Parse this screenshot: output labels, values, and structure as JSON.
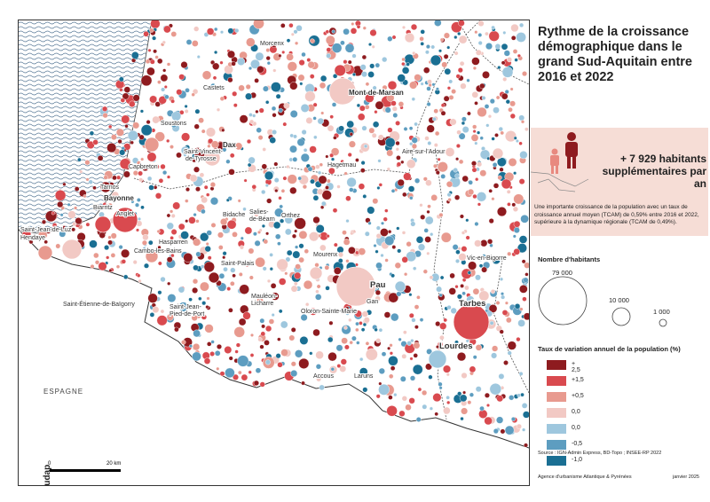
{
  "map": {
    "country_label": "ESPAGNE",
    "scale_start": "0",
    "scale_end": "20 km",
    "logo": "audap",
    "places": [
      {
        "name": "Morcenx",
        "cls": ""
      },
      {
        "name": "Castets",
        "cls": ""
      },
      {
        "name": "Mont-de-Marsan",
        "cls": "mid"
      },
      {
        "name": "Soustons",
        "cls": ""
      },
      {
        "name": "Dax",
        "cls": "mid"
      },
      {
        "name": "Saint-Vincent-",
        "cls": ""
      },
      {
        "name": "de-Tyrosse",
        "cls": ""
      },
      {
        "name": "Aire-sur-l'Adour",
        "cls": ""
      },
      {
        "name": "Hagetmau",
        "cls": ""
      },
      {
        "name": "Capbreton",
        "cls": ""
      },
      {
        "name": "Tarnos",
        "cls": ""
      },
      {
        "name": "Bayonne",
        "cls": "mid"
      },
      {
        "name": "Biarritz",
        "cls": ""
      },
      {
        "name": "Anglet",
        "cls": ""
      },
      {
        "name": "Bidache",
        "cls": ""
      },
      {
        "name": "Salies-",
        "cls": ""
      },
      {
        "name": "de-Béarn",
        "cls": ""
      },
      {
        "name": "Orthez",
        "cls": ""
      },
      {
        "name": "Saint-Jean-de-Luz",
        "cls": ""
      },
      {
        "name": "Hendaye",
        "cls": ""
      },
      {
        "name": "Hasparren",
        "cls": ""
      },
      {
        "name": "Cambo-les-Bains",
        "cls": ""
      },
      {
        "name": "Saint-Palais",
        "cls": ""
      },
      {
        "name": "Mourenx",
        "cls": ""
      },
      {
        "name": "Vic-en-Bigorre",
        "cls": ""
      },
      {
        "name": "Pau",
        "cls": "big"
      },
      {
        "name": "Mauléon-",
        "cls": ""
      },
      {
        "name": "Licharre",
        "cls": ""
      },
      {
        "name": "Gan",
        "cls": ""
      },
      {
        "name": "Tarbes",
        "cls": "big"
      },
      {
        "name": "Saint-Étienne-de-Baïgorry",
        "cls": ""
      },
      {
        "name": "Saint-Jean-",
        "cls": ""
      },
      {
        "name": "Pied-de-Port",
        "cls": ""
      },
      {
        "name": "Oloron-Sainte-Marie",
        "cls": ""
      },
      {
        "name": "Lourdes",
        "cls": "big"
      },
      {
        "name": "Accous",
        "cls": ""
      },
      {
        "name": "Laruns",
        "cls": ""
      }
    ]
  },
  "legend": {
    "title": "Rythme de la croissance démographique dans le grand Sud-Aquitain entre 2016 et 2022",
    "highlight_value": "+ 7 929 habitants supplémentaires par an",
    "highlight_text": "Une importante croissance de la population avec un taux de croissance annuel moyen (TCAM) de 0,59% entre 2016 et 2022, supérieure à la dynamique régionale (TCAM de 0,49%).",
    "size_title": "Nombre d'habitants",
    "sizes": [
      "79 000",
      "10 000",
      "1 000"
    ],
    "rate_title": "Taux de variation annuel de la population (%)",
    "rates": [
      {
        "label": "+ 2,5",
        "color": "#8e1b1f"
      },
      {
        "label": "+1,5",
        "color": "#d94a4f"
      },
      {
        "label": "+0,5",
        "color": "#e89a8f"
      },
      {
        "label": "0,0",
        "color": "#f2c9c4"
      },
      {
        "label": "0,0",
        "color": "#9ec7de"
      },
      {
        "label": "-0,5",
        "color": "#5d9dc0"
      },
      {
        "label": "-1,0",
        "color": "#1a6f93"
      }
    ],
    "source": "Source : IGN-Admin Express, BD-Topo ; INSEE-RP 2022",
    "agency": "Agence d'urbanisme Atlantique & Pyrénées",
    "date": "janvier 2025"
  },
  "colors": {
    "dark_red": "#8e1b1f",
    "red": "#d94a4f",
    "salmon": "#e89a8f",
    "pink": "#f2c9c4",
    "light_blue": "#9ec7de",
    "blue": "#5d9dc0",
    "dark_blue": "#1a6f93"
  }
}
